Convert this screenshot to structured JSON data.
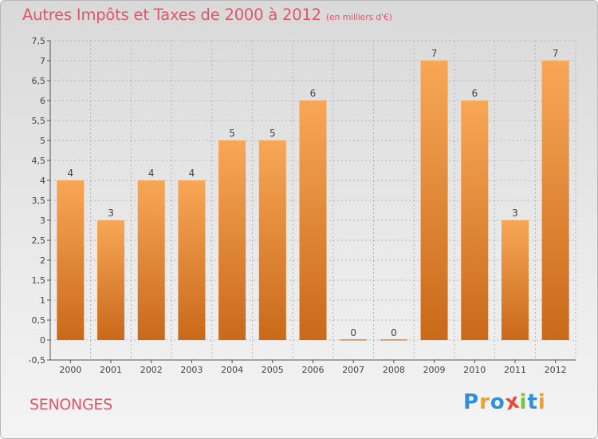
{
  "title": "Autres Impôts et Taxes de 2000 à 2012",
  "unit_label": "(en milliers d'€)",
  "town": "SENONGES",
  "logo": {
    "text": "Proxiti",
    "letters": [
      {
        "ch": "P",
        "color": "#2f8fd8"
      },
      {
        "ch": "r",
        "color": "#f0a02c"
      },
      {
        "ch": "o",
        "color": "#2f8fd8"
      },
      {
        "ch": "x",
        "color": "#e84d3c"
      },
      {
        "ch": "i",
        "color": "#7cc242"
      },
      {
        "ch": "t",
        "color": "#2f8fd8"
      },
      {
        "ch": "i",
        "color": "#f0a02c"
      }
    ]
  },
  "colors": {
    "bar_light": "#f8a757",
    "bar_dark": "#c9691a",
    "title": "#e0566a",
    "grid": "#a8a8a8"
  },
  "chart_data": {
    "type": "bar",
    "categories": [
      "2000",
      "2001",
      "2002",
      "2003",
      "2004",
      "2005",
      "2006",
      "2007",
      "2008",
      "2009",
      "2010",
      "2011",
      "2012"
    ],
    "values": [
      4,
      3,
      4,
      4,
      5,
      5,
      6,
      0,
      0,
      7,
      6,
      3,
      7
    ],
    "data_labels": [
      "4",
      "3",
      "4",
      "4",
      "5",
      "5",
      "6",
      "0",
      "0",
      "7",
      "6",
      "3",
      "7"
    ],
    "title": "Autres Impôts et Taxes de 2000 à 2012",
    "xlabel": "",
    "ylabel": "",
    "ylim": [
      -0.5,
      7.5
    ],
    "yticks": [
      -0.5,
      0,
      0.5,
      1,
      1.5,
      2,
      2.5,
      3,
      3.5,
      4,
      4.5,
      5,
      5.5,
      6,
      6.5,
      7,
      7.5
    ],
    "ytick_labels": [
      "-0,5",
      "0",
      "0,5",
      "1",
      "1,5",
      "2",
      "2,5",
      "3",
      "3,5",
      "4",
      "4,5",
      "5",
      "5,5",
      "6",
      "6,5",
      "7",
      "7,5"
    ],
    "grid": true
  }
}
